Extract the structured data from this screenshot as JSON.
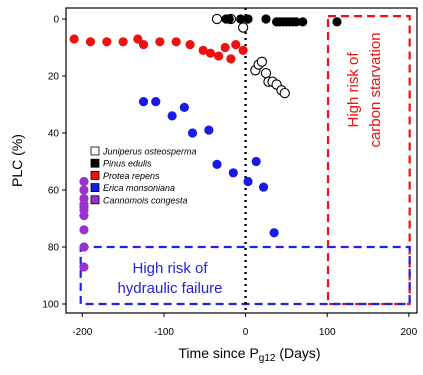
{
  "chart_data": {
    "type": "scatter",
    "title": "",
    "xlabel": "Time since P",
    "xlabel_sub": "g12",
    "xlabel_suffix": " (Days)",
    "ylabel": "PLC (%)",
    "xlim": [
      -220,
      210
    ],
    "ylim": [
      100,
      0
    ],
    "x_ticks": [
      -200,
      -100,
      0,
      100,
      200
    ],
    "x_tick_labels": [
      "-200",
      "-100",
      "0",
      "100",
      "200"
    ],
    "y_ticks": [
      0,
      20,
      40,
      60,
      80,
      100
    ],
    "y_tick_labels": [
      "0",
      "20",
      "40",
      "60",
      "80",
      "100"
    ],
    "grid": false,
    "legend_position": "center-left",
    "series": [
      {
        "name": "Juniperus osteosperma",
        "color": "#000000",
        "filled": false,
        "points": [
          [
            -35,
            0
          ],
          [
            -18,
            0
          ],
          [
            -3,
            3
          ],
          [
            12,
            18
          ],
          [
            16,
            16
          ],
          [
            20,
            15
          ],
          [
            25,
            19
          ],
          [
            28,
            22
          ],
          [
            33,
            22
          ],
          [
            38,
            23
          ],
          [
            44,
            25
          ],
          [
            48,
            26
          ]
        ]
      },
      {
        "name": "Pinus edulis",
        "color": "#000000",
        "filled": true,
        "points": [
          [
            -24,
            0
          ],
          [
            -20,
            0
          ],
          [
            -6,
            0
          ],
          [
            3,
            0
          ],
          [
            25,
            0
          ],
          [
            38,
            1
          ],
          [
            42,
            1
          ],
          [
            46,
            1
          ],
          [
            50,
            1
          ],
          [
            54,
            1
          ],
          [
            58,
            1
          ],
          [
            62,
            1
          ],
          [
            70,
            1
          ],
          [
            112,
            1
          ]
        ]
      },
      {
        "name": "Protea repens",
        "color": "#ee1111",
        "filled": true,
        "points": [
          [
            -210,
            7
          ],
          [
            -190,
            8
          ],
          [
            -170,
            8
          ],
          [
            -150,
            8
          ],
          [
            -132,
            7
          ],
          [
            -125,
            9
          ],
          [
            -105,
            8
          ],
          [
            -85,
            8
          ],
          [
            -68,
            9
          ],
          [
            -52,
            11
          ],
          [
            -43,
            12
          ],
          [
            -33,
            13
          ],
          [
            -25,
            10
          ],
          [
            -18,
            14
          ],
          [
            -12,
            9
          ],
          [
            -3,
            11
          ]
        ]
      },
      {
        "name": "Erica monsoniana",
        "color": "#1a1ae6",
        "filled": true,
        "points": [
          [
            -125,
            29
          ],
          [
            -110,
            29
          ],
          [
            -90,
            34
          ],
          [
            -75,
            31
          ],
          [
            -65,
            40
          ],
          [
            -45,
            39
          ],
          [
            -35,
            51
          ],
          [
            -15,
            54
          ],
          [
            3,
            57
          ],
          [
            13,
            50
          ],
          [
            22,
            59
          ],
          [
            35,
            75
          ]
        ]
      },
      {
        "name": "Cannomois congesta",
        "color": "#9933cc",
        "filled": true,
        "points": [
          [
            -198,
            57
          ],
          [
            -198,
            60
          ],
          [
            -198,
            63
          ],
          [
            -198,
            65
          ],
          [
            -198,
            66
          ],
          [
            -198,
            67
          ],
          [
            -198,
            69
          ],
          [
            -198,
            74
          ],
          [
            -198,
            80
          ],
          [
            -198,
            87
          ]
        ]
      }
    ],
    "annotations": [
      {
        "id": "carbon",
        "lines": [
          "High risk of",
          "carbon starvation"
        ],
        "color": "#ee1111",
        "region": {
          "x": [
            101,
            201
          ],
          "y": [
            -1,
            100
          ]
        }
      },
      {
        "id": "hydraulic",
        "lines": [
          "High risk of",
          "hydraulic failure"
        ],
        "color": "#2222dd",
        "region": {
          "x": [
            -202,
            201
          ],
          "y": [
            80,
            100
          ]
        }
      }
    ],
    "reference_line": {
      "x": 0,
      "style": "dotted",
      "color": "#000000"
    }
  }
}
